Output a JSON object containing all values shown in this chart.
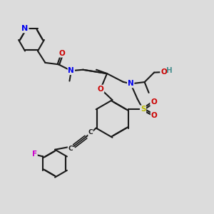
{
  "bg_color": "#dcdcdc",
  "bond_color": "#1a1a1a",
  "bond_lw": 1.5,
  "dbl_off": 0.055,
  "atom_colors": {
    "N": "#0000ee",
    "O": "#cc0000",
    "S": "#b8b800",
    "F": "#cc00cc",
    "H": "#4a9090",
    "C": "#1a1a1a"
  },
  "fs": 7.5
}
